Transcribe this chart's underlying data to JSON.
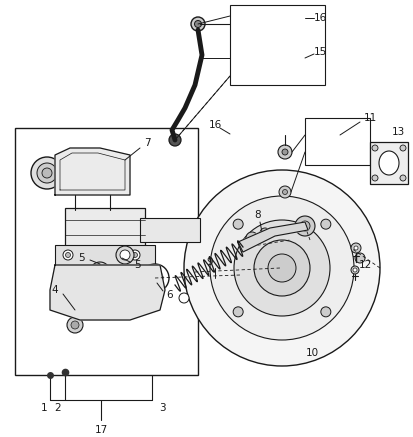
{
  "bg_color": "#ffffff",
  "lc": "#1a1a1a",
  "fig_w": 4.14,
  "fig_h": 4.37,
  "dpi": 100,
  "label_fs": 7.5
}
